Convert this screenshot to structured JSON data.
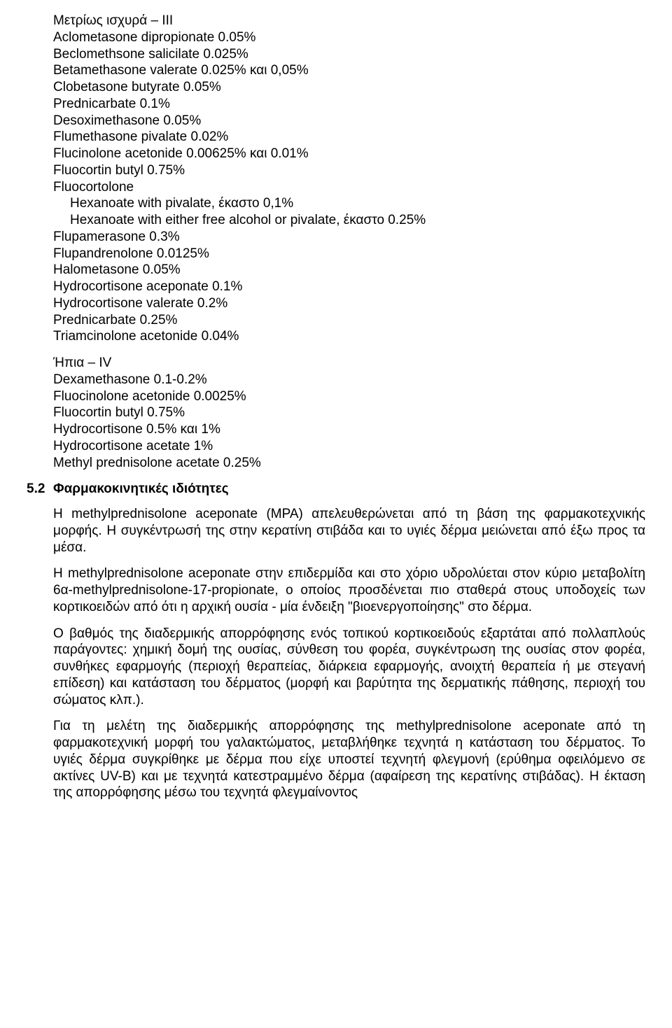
{
  "groupIII": {
    "title": "Μετρίως ισχυρά – III",
    "items": [
      "Aclometasone dipropionate 0.05%",
      "Beclomethsone salicilate 0.025%",
      "Betamethasone valerate 0.025% και 0,05%",
      "Clobetasone butyrate 0.05%",
      "Prednicarbate 0.1%",
      "Desoximethasone 0.05%",
      "Flumethasone pivalate 0.02%",
      "Flucinolone acetonide 0.00625% και 0.01%",
      "Fluocortin butyl 0.75%",
      "Fluocortolone"
    ],
    "sub": [
      "Hexanoate with pivalate, έκαστο 0,1%",
      "Hexanoate with either free alcohol or pivalate, έκαστο 0.25%"
    ],
    "items2": [
      "Flupamerasone 0.3%",
      "Flupandrenolone 0.0125%",
      "Halometasone 0.05%",
      "Hydrocortisone aceponate 0.1%",
      "Hydrocortisone valerate 0.2%",
      "Prednicarbate 0.25%",
      "Triamcinolone acetonide 0.04%"
    ]
  },
  "groupIV": {
    "title": "Ήπια – IV",
    "items": [
      "Dexamethasone 0.1-0.2%",
      "Fluocinolone acetonide 0.0025%",
      "Fluocortin butyl 0.75%",
      "Hydrocortisone 0.5% και 1%",
      "Hydrocortisone acetate 1%",
      "Methyl prednisolone acetate 0.25%"
    ]
  },
  "section": {
    "num": "5.2",
    "title": "Φαρμακοκινητικές ιδιότητες"
  },
  "paras": {
    "p1": "Η methylprednisolone aceponate (MPA) απελευθερώνεται από τη βάση της φαρμακοτεχνικής μορφής.  Η συγκέντρωσή της στην κερατίνη στιβάδα και το υγιές δέρμα μειώνεται από έξω προς τα μέσα.",
    "p2": "Η methylprednisolone aceponate στην επιδερμίδα και στο χόριο υδρολύεται στον κύριο μεταβολίτη 6α-methylprednisolone-17-propionate, ο οποίος προσδένεται πιο σταθερά στους υποδοχείς των κορτικοειδών από ότι η αρχική ουσία - μία ένδειξη \"βιοενεργοποίησης\" στο δέρμα.",
    "p3": "Ο βαθμός της διαδερμικής απορρόφησης ενός τοπικού κορτικοειδούς εξαρτάται από πολλαπλούς παράγοντες:  χημική δομή της ουσίας, σύνθεση του φορέα, συγκέντρωση της ουσίας στον φορέα, συνθήκες εφαρμογής (περιοχή θεραπείας, διάρκεια εφαρμογής, ανοιχτή θεραπεία ή με στεγανή επίδεση) και κατάσταση του δέρματος (μορφή και βαρύτητα της δερματικής πάθησης, περιοχή του σώματος κλπ.).",
    "p4": "Για τη μελέτη της διαδερμικής απορρόφησης της methylprednisolone aceponate από τη φαρμακοτεχνική μορφή του γαλακτώματος, μεταβλήθηκε τεχνητά η κατάσταση του δέρματος.  Το υγιές δέρμα συγκρίθηκε με δέρμα που είχε υποστεί τεχνητή φλεγμονή (ερύθημα οφειλόμενο σε ακτίνες UV-B) και με τεχνητά κατεστραμμένο δέρμα (αφαίρεση της κερατίνης στιβάδας).  Η έκταση της απορρόφησης μέσω του τεχνητά φλεγμαίνοντος"
  }
}
